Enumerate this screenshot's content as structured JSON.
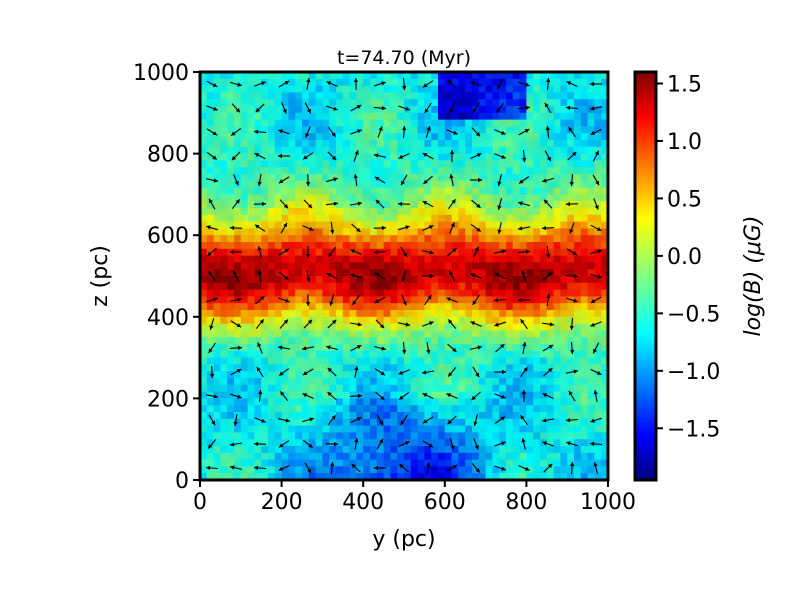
{
  "chart_data": {
    "type": "heatmap",
    "title": "t=74.70 (Myr)",
    "xlabel": "y (pc)",
    "ylabel": "z (pc)",
    "xlim": [
      0,
      1000
    ],
    "ylim": [
      0,
      1000
    ],
    "x_ticks": [
      "0",
      "200",
      "400",
      "600",
      "800",
      "1000"
    ],
    "y_ticks": [
      "0",
      "200",
      "400",
      "600",
      "800",
      "1000"
    ],
    "colorbar": {
      "label": "log(B) (μG)",
      "colormap": "jet",
      "range": [
        -1.95,
        1.6
      ],
      "ticks": [
        "1.5",
        "1.0",
        "0.5",
        "0.0",
        "−0.5",
        "−1.0",
        "−1.5"
      ],
      "tick_values": [
        1.5,
        1.0,
        0.5,
        0.0,
        -0.5,
        -1.0,
        -1.5
      ]
    },
    "field": {
      "description_values": "log10 magnetic field strength vs height; peak near midplane z≈500 pc",
      "midplane_z": 500,
      "peak_value": 1.3,
      "background_value": -0.6,
      "lowest_value": -1.7
    },
    "overlay": "magnetic field direction arrows"
  }
}
